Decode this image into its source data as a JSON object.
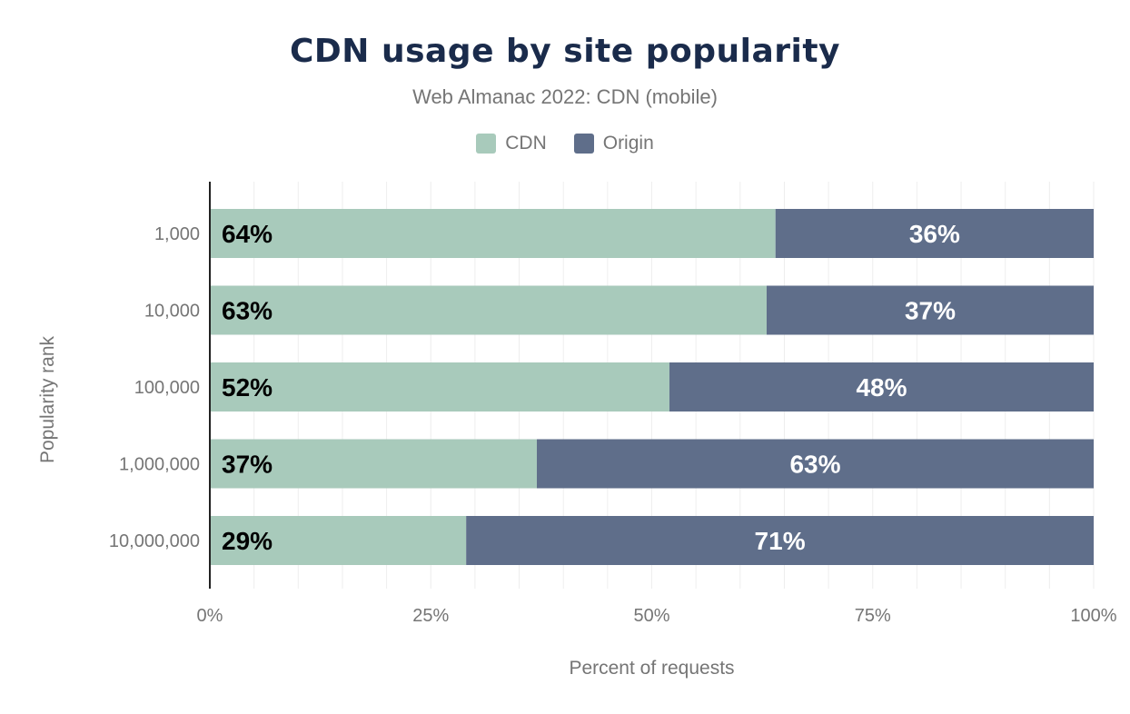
{
  "chart_data": {
    "type": "bar",
    "orientation": "horizontal",
    "stacked": true,
    "title": "CDN usage by site popularity",
    "subtitle": "Web Almanac 2022: CDN (mobile)",
    "xlabel": "Percent of requests",
    "ylabel": "Popularity rank",
    "xlim": [
      0,
      100
    ],
    "x_ticks": [
      "0%",
      "25%",
      "50%",
      "75%",
      "100%"
    ],
    "grid": true,
    "legend_position": "top",
    "categories": [
      "1,000",
      "10,000",
      "100,000",
      "1,000,000",
      "10,000,000"
    ],
    "series": [
      {
        "name": "CDN",
        "color": "#a8cabb",
        "label_color": "#000000",
        "values": [
          64,
          63,
          52,
          37,
          29
        ]
      },
      {
        "name": "Origin",
        "color": "#5f6e8a",
        "label_color": "#ffffff",
        "values": [
          36,
          37,
          48,
          63,
          71
        ]
      }
    ]
  }
}
